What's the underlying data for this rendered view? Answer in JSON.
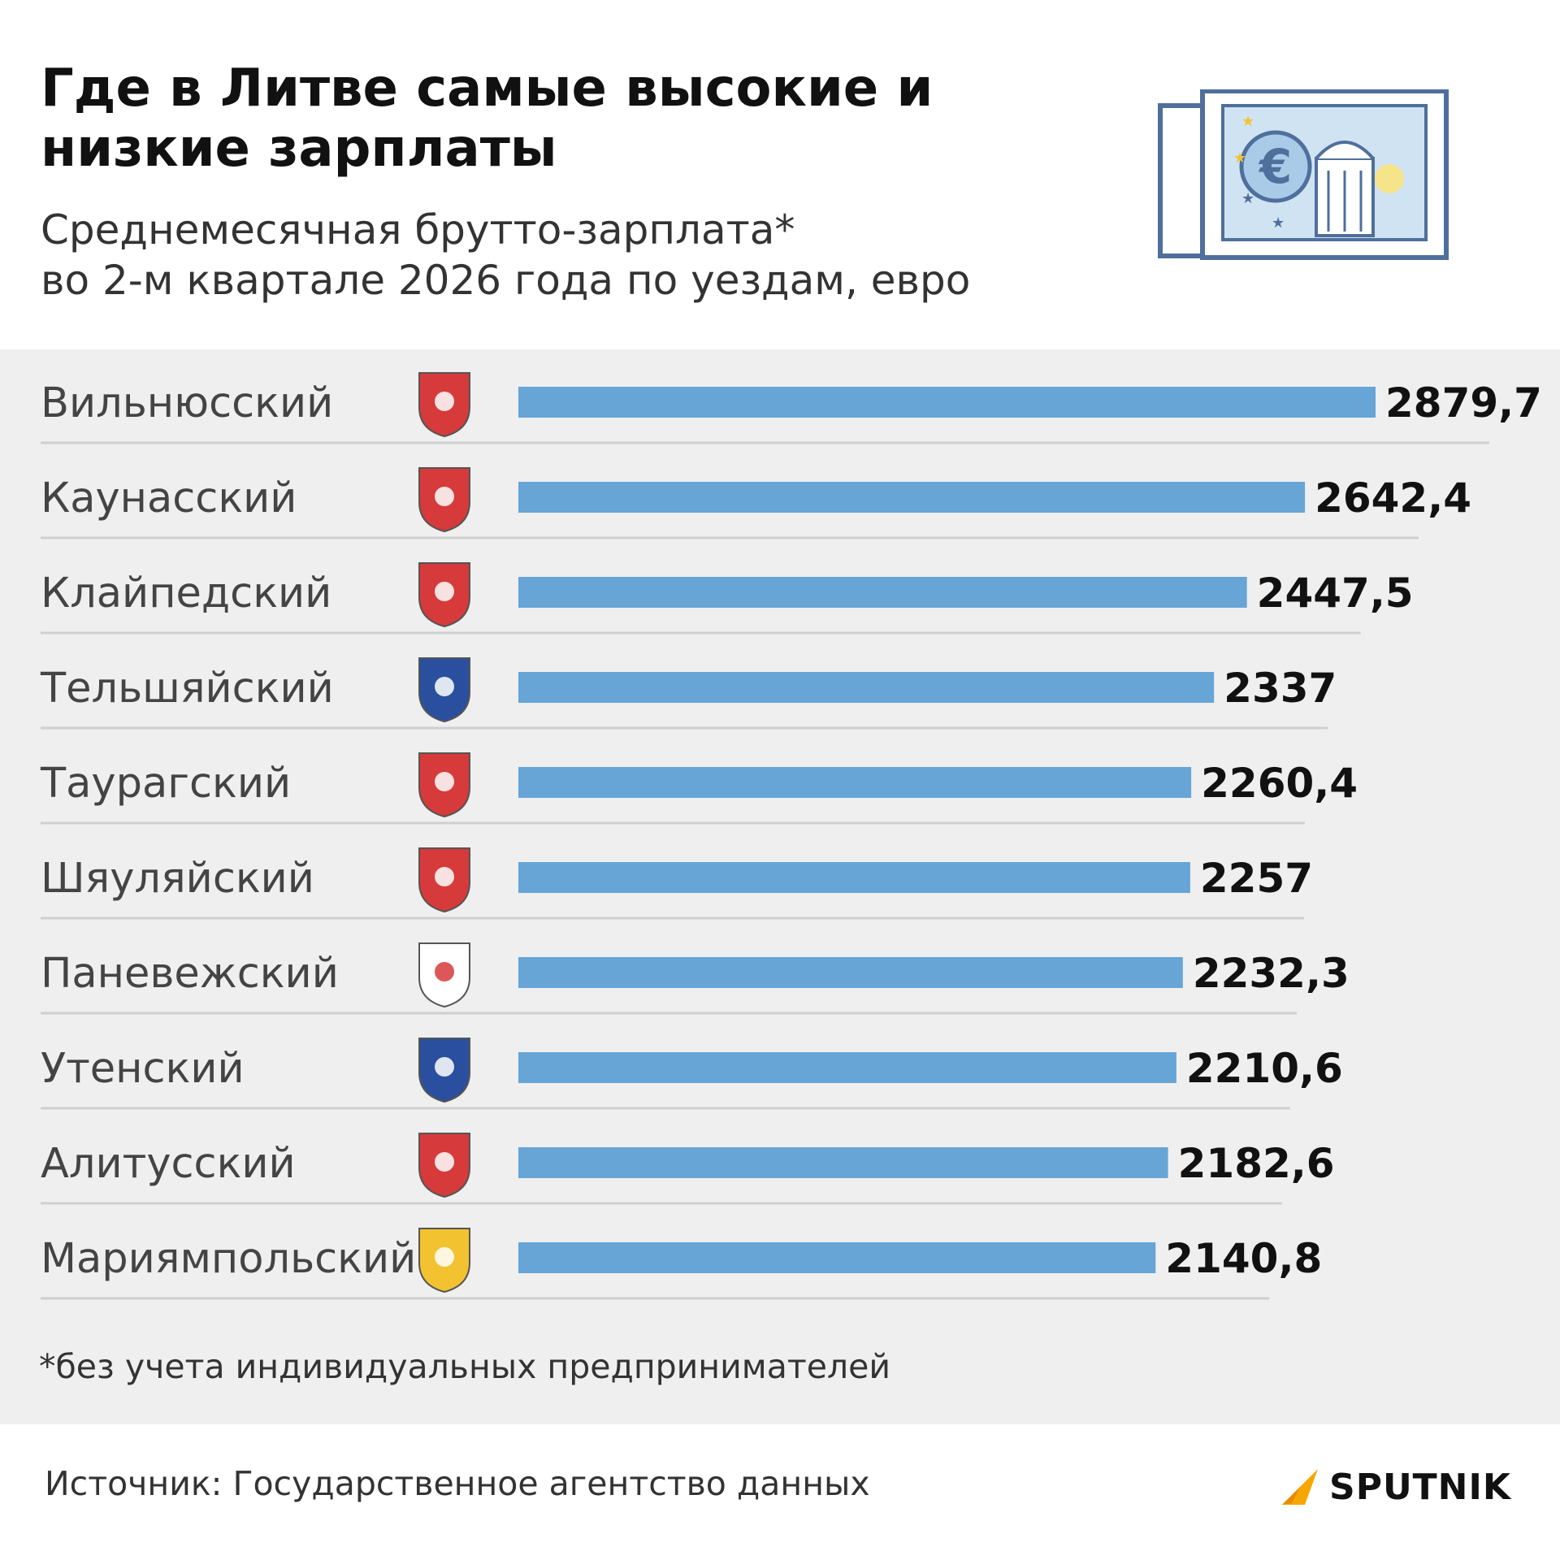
{
  "header": {
    "title": "Где в Литве самые высокие и низкие зарплаты",
    "subtitle_line1": "Среднемесячная брутто-зарплата*",
    "subtitle_line2": "во 2-м квартале 2026 года по уездам, евро"
  },
  "chart_data": {
    "type": "bar",
    "orientation": "horizontal",
    "title": "Где в Литве самые высокие и низкие зарплаты",
    "subtitle": "Среднемесячная брутто-зарплата* во 2-м квартале 2026 года по уездам, евро",
    "categories": [
      "Вильнюсский",
      "Каунасский",
      "Клайпедский",
      "Тельшяйский",
      "Таурагский",
      "Шяуляйский",
      "Паневежский",
      "Утенский",
      "Алитусский",
      "Мариямпольский"
    ],
    "values": [
      2879.7,
      2642.4,
      2447.5,
      2337,
      2260.4,
      2257,
      2232.3,
      2210.6,
      2182.6,
      2140.8
    ],
    "value_labels": [
      "2879,7",
      "2642,4",
      "2447,5",
      "2337",
      "2260,4",
      "2257",
      "2232,3",
      "2210,6",
      "2182,6",
      "2140,8"
    ],
    "coat_of_arms_icons": [
      "vilnius-coat-of-arms-icon",
      "kaunas-coat-of-arms-icon",
      "klaipeda-coat-of-arms-icon",
      "telsiai-coat-of-arms-icon",
      "taurage-coat-of-arms-icon",
      "siauliai-coat-of-arms-icon",
      "panevezys-coat-of-arms-icon",
      "utena-coat-of-arms-icon",
      "alytus-coat-of-arms-icon",
      "marijampole-coat-of-arms-icon"
    ],
    "xlim": [
      0,
      2879.7
    ],
    "grid": false,
    "legend": "none",
    "bar_color": "#66a5d6"
  },
  "footnote": "*без учета индивидуальных предпринимателей",
  "source": "Источник: Государственное агентство данных",
  "brand": "SPUTNIK",
  "colors": {
    "bar": "#66a5d6",
    "panel_background": "#efefef",
    "logo_accent": "#f7a600"
  }
}
